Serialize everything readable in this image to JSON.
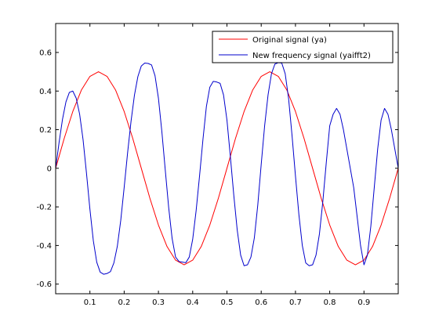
{
  "chart_data": {
    "type": "line",
    "title": "",
    "xlabel": "",
    "ylabel": "",
    "xlim": [
      0,
      1
    ],
    "ylim": [
      -0.65,
      0.75
    ],
    "grid": false,
    "legend_position": "top-right",
    "x_ticks": [
      {
        "value": 0.1,
        "label": "0.1"
      },
      {
        "value": 0.2,
        "label": "0.2"
      },
      {
        "value": 0.3,
        "label": "0.3"
      },
      {
        "value": 0.4,
        "label": "0.4"
      },
      {
        "value": 0.5,
        "label": "0.5"
      },
      {
        "value": 0.6,
        "label": "0.6"
      },
      {
        "value": 0.7,
        "label": "0.7"
      },
      {
        "value": 0.8,
        "label": "0.8"
      },
      {
        "value": 0.9,
        "label": "0.9"
      }
    ],
    "y_ticks": [
      {
        "value": -0.6,
        "label": "-0.6"
      },
      {
        "value": -0.4,
        "label": "-0.4"
      },
      {
        "value": -0.2,
        "label": "-0.2"
      },
      {
        "value": 0,
        "label": "0"
      },
      {
        "value": 0.2,
        "label": "0.2"
      },
      {
        "value": 0.4,
        "label": "0.4"
      },
      {
        "value": 0.6,
        "label": "0.6"
      }
    ],
    "series": [
      {
        "name": "Original signal (ya)",
        "color": "#ff0000",
        "x": [
          0,
          0.025,
          0.05,
          0.075,
          0.1,
          0.125,
          0.15,
          0.175,
          0.2,
          0.225,
          0.25,
          0.275,
          0.3,
          0.325,
          0.35,
          0.375,
          0.4,
          0.425,
          0.45,
          0.475,
          0.5,
          0.525,
          0.55,
          0.575,
          0.6,
          0.625,
          0.65,
          0.675,
          0.7,
          0.725,
          0.75,
          0.775,
          0.8,
          0.825,
          0.85,
          0.875,
          0.9,
          0.925,
          0.95,
          0.975,
          1.0
        ],
        "y": [
          0,
          0.155,
          0.294,
          0.405,
          0.476,
          0.5,
          0.476,
          0.405,
          0.294,
          0.155,
          0,
          -0.155,
          -0.294,
          -0.405,
          -0.476,
          -0.5,
          -0.476,
          -0.405,
          -0.294,
          -0.155,
          0,
          0.155,
          0.294,
          0.405,
          0.476,
          0.5,
          0.476,
          0.405,
          0.294,
          0.155,
          0,
          -0.155,
          -0.294,
          -0.405,
          -0.476,
          -0.5,
          -0.476,
          -0.405,
          -0.294,
          -0.155,
          0
        ]
      },
      {
        "name": "New frequency signal (yaifft2)",
        "color": "#0000cc",
        "x": [
          0,
          0.01,
          0.02,
          0.03,
          0.04,
          0.05,
          0.06,
          0.07,
          0.08,
          0.09,
          0.1,
          0.11,
          0.12,
          0.13,
          0.14,
          0.15,
          0.16,
          0.17,
          0.18,
          0.19,
          0.2,
          0.21,
          0.22,
          0.23,
          0.24,
          0.25,
          0.26,
          0.27,
          0.28,
          0.29,
          0.3,
          0.31,
          0.32,
          0.33,
          0.34,
          0.35,
          0.36,
          0.37,
          0.38,
          0.39,
          0.4,
          0.41,
          0.42,
          0.43,
          0.44,
          0.45,
          0.46,
          0.47,
          0.48,
          0.49,
          0.5,
          0.51,
          0.52,
          0.53,
          0.54,
          0.55,
          0.56,
          0.57,
          0.58,
          0.59,
          0.6,
          0.61,
          0.62,
          0.63,
          0.64,
          0.65,
          0.66,
          0.67,
          0.68,
          0.69,
          0.7,
          0.71,
          0.72,
          0.73,
          0.74,
          0.75,
          0.76,
          0.77,
          0.78,
          0.79,
          0.8,
          0.81,
          0.82,
          0.83,
          0.84,
          0.85,
          0.86,
          0.87,
          0.88,
          0.89,
          0.9,
          0.91,
          0.92,
          0.93,
          0.94,
          0.95,
          0.96,
          0.97,
          0.98,
          0.99,
          1.0
        ],
        "y": [
          0,
          0.134,
          0.254,
          0.344,
          0.393,
          0.4,
          0.363,
          0.28,
          0.148,
          -0.026,
          -0.212,
          -0.376,
          -0.487,
          -0.538,
          -0.549,
          -0.545,
          -0.535,
          -0.49,
          -0.404,
          -0.27,
          -0.099,
          0.08,
          0.243,
          0.379,
          0.475,
          0.53,
          0.545,
          0.543,
          0.535,
          0.48,
          0.363,
          0.19,
          -0.01,
          -0.205,
          -0.364,
          -0.46,
          -0.483,
          -0.486,
          -0.489,
          -0.46,
          -0.368,
          -0.22,
          -0.04,
          0.15,
          0.32,
          0.42,
          0.45,
          0.447,
          0.44,
          0.38,
          0.25,
          0.06,
          -0.14,
          -0.32,
          -0.45,
          -0.505,
          -0.5,
          -0.46,
          -0.36,
          -0.19,
          0.02,
          0.22,
          0.38,
          0.49,
          0.54,
          0.547,
          0.545,
          0.49,
          0.36,
          0.17,
          -0.04,
          -0.24,
          -0.4,
          -0.49,
          -0.505,
          -0.5,
          -0.45,
          -0.34,
          -0.17,
          0.03,
          0.22,
          0.28,
          0.31,
          0.28,
          0.2,
          0.1,
          0.0,
          -0.1,
          -0.25,
          -0.4,
          -0.5,
          -0.45,
          -0.3,
          -0.1,
          0.1,
          0.25,
          0.31,
          0.28,
          0.2,
          0.1,
          0
        ]
      }
    ]
  }
}
